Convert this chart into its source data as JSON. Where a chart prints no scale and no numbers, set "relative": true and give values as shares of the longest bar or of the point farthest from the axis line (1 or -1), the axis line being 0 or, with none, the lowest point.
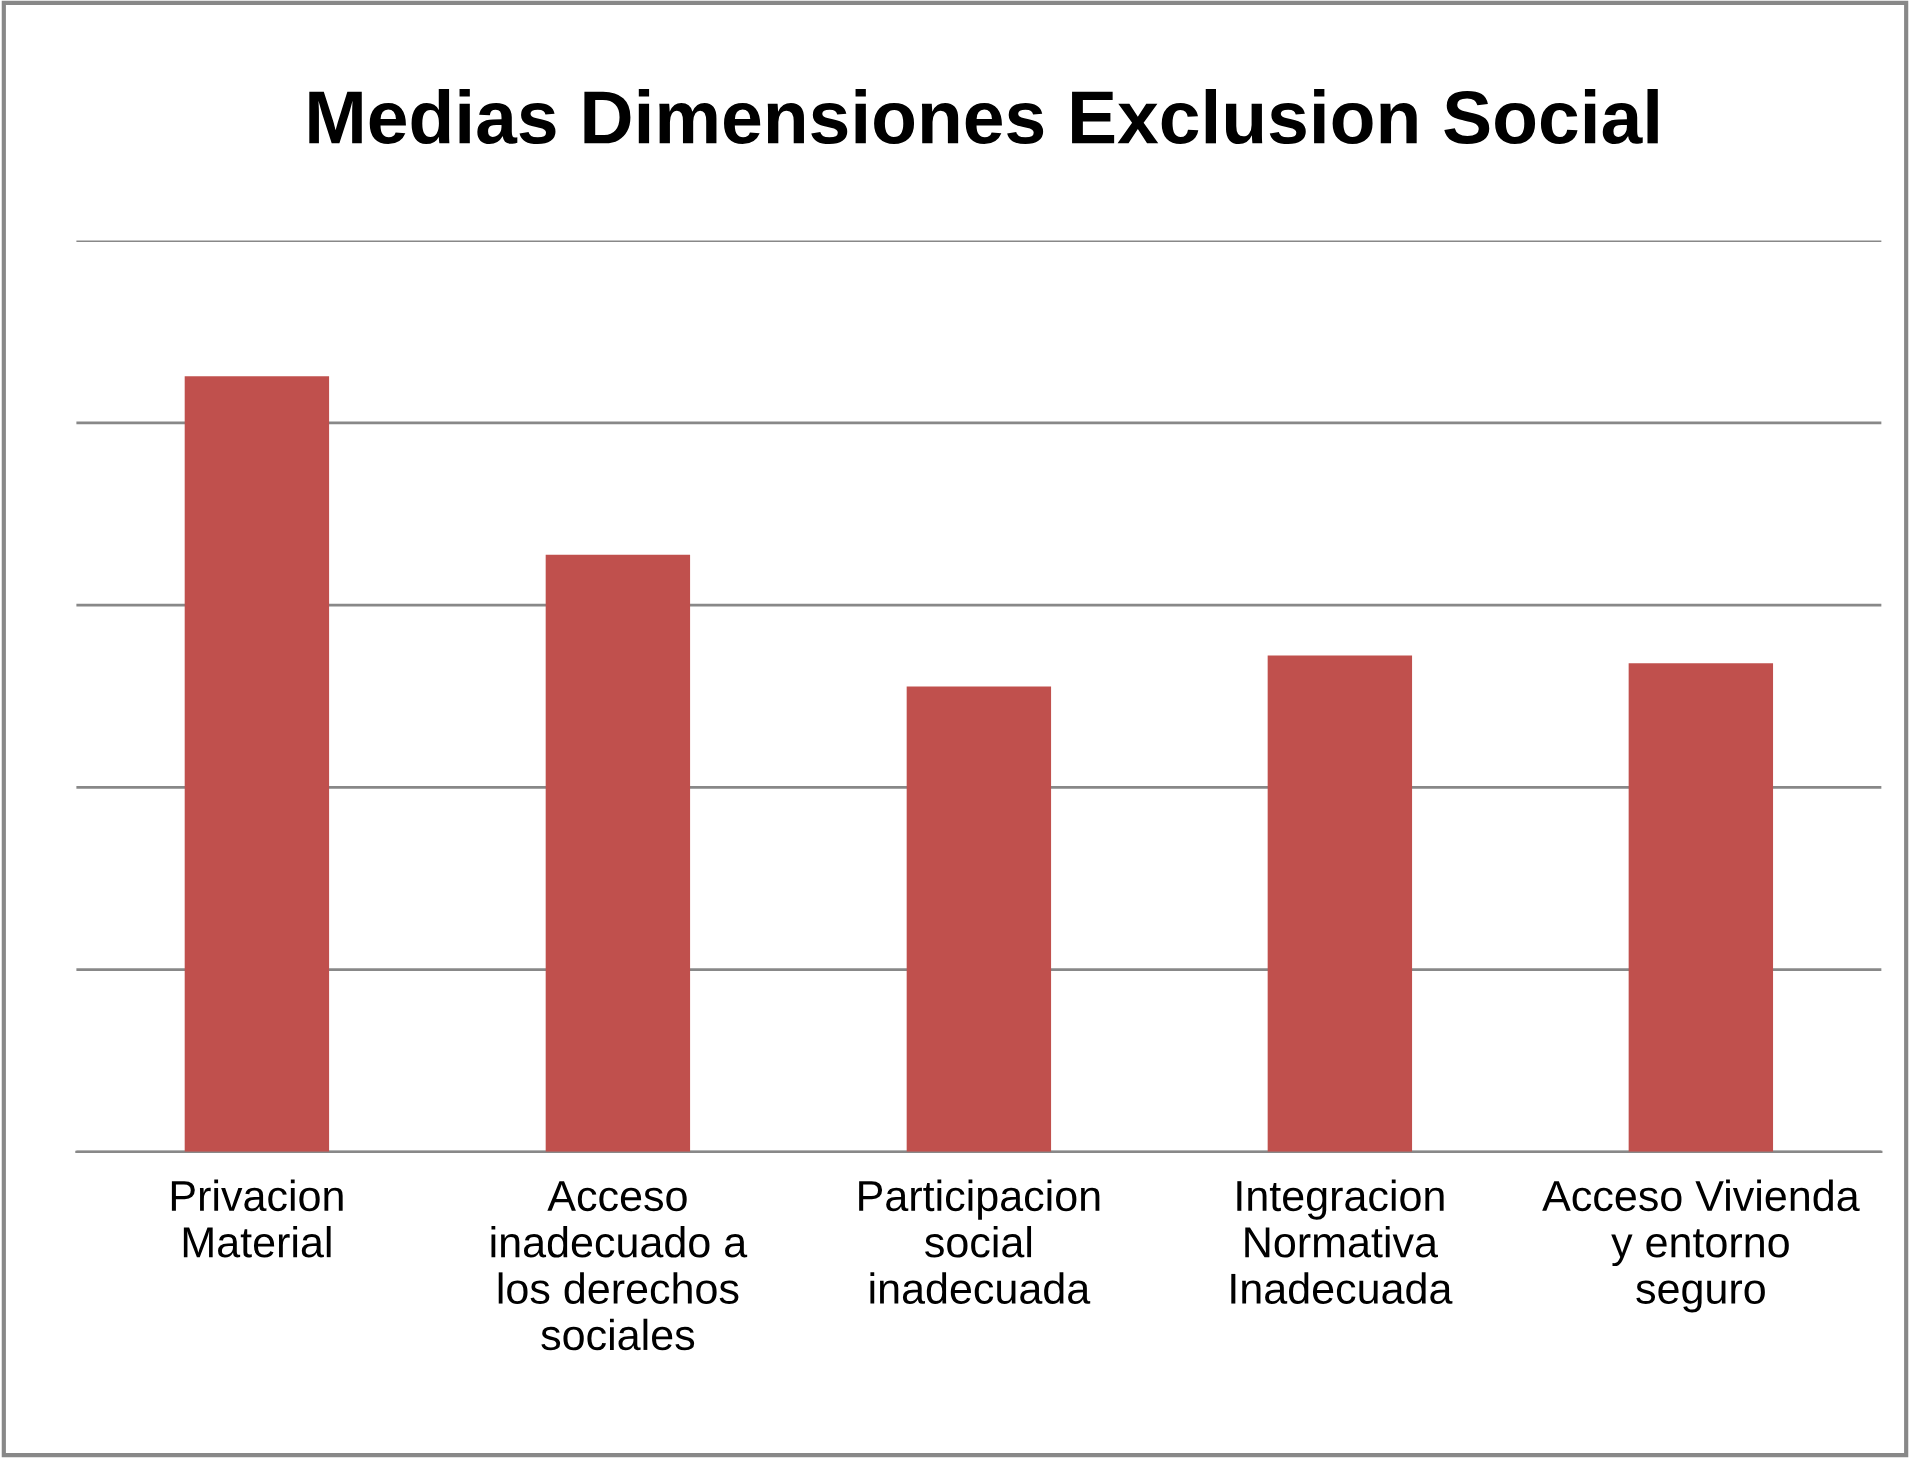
{
  "chart_data": {
    "type": "bar",
    "title": "Medias Dimensiones Exclusion Social",
    "categories": [
      "Privacion Material",
      "Acceso inadecuado a los derechos sociales",
      "Participacion social inadecuada",
      "Integracion Normativa Inadecuada",
      "Acceso Vivienda y entorno seguro"
    ],
    "values": [
      1,
      0.77,
      0.6,
      0.64,
      0.63
    ],
    "color": "#c0504d",
    "relative": true,
    "grid": "y",
    "tick_labels": "x"
  }
}
